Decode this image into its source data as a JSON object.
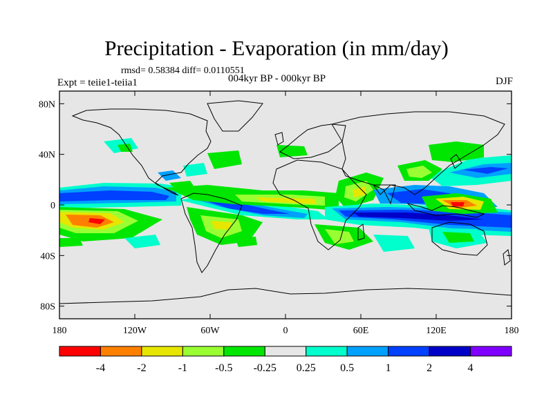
{
  "title": "Precipitation - Evaporation (in mm/day)",
  "stats": "rmsd= 0.58384 diff= 0.0110551",
  "experiment": "Expt = teiie1-teiia1",
  "period": "004kyr BP - 000kyr BP",
  "season": "DJF",
  "map": {
    "projection": "cylindrical-equidistant",
    "lon_range": [
      -180,
      180
    ],
    "lat_range": [
      -90,
      90
    ],
    "background_color": "#e6e6e6",
    "coastline_color": "#000000",
    "x_ticks": [
      {
        "lon": -180,
        "label": "180"
      },
      {
        "lon": -120,
        "label": "120W"
      },
      {
        "lon": -60,
        "label": "60W"
      },
      {
        "lon": 0,
        "label": "0"
      },
      {
        "lon": 60,
        "label": "60E"
      },
      {
        "lon": 120,
        "label": "120E"
      },
      {
        "lon": 180,
        "label": "180"
      }
    ],
    "y_ticks": [
      {
        "lat": 80,
        "label": "80N"
      },
      {
        "lat": 40,
        "label": "40N"
      },
      {
        "lat": 0,
        "label": "0"
      },
      {
        "lat": -40,
        "label": "40S"
      },
      {
        "lat": -80,
        "label": "80S"
      }
    ]
  },
  "colorbar": {
    "colors": [
      "#ff0000",
      "#ff8000",
      "#e6e600",
      "#99ff33",
      "#00e600",
      "#e6e6e6",
      "#00ffcc",
      "#00a0ff",
      "#0040ff",
      "#0000c8",
      "#8000ff"
    ],
    "labels": [
      "-4",
      "-2",
      "-1",
      "-0.5",
      "-0.25",
      "0.25",
      "0.5",
      "1",
      "2",
      "4"
    ]
  }
}
